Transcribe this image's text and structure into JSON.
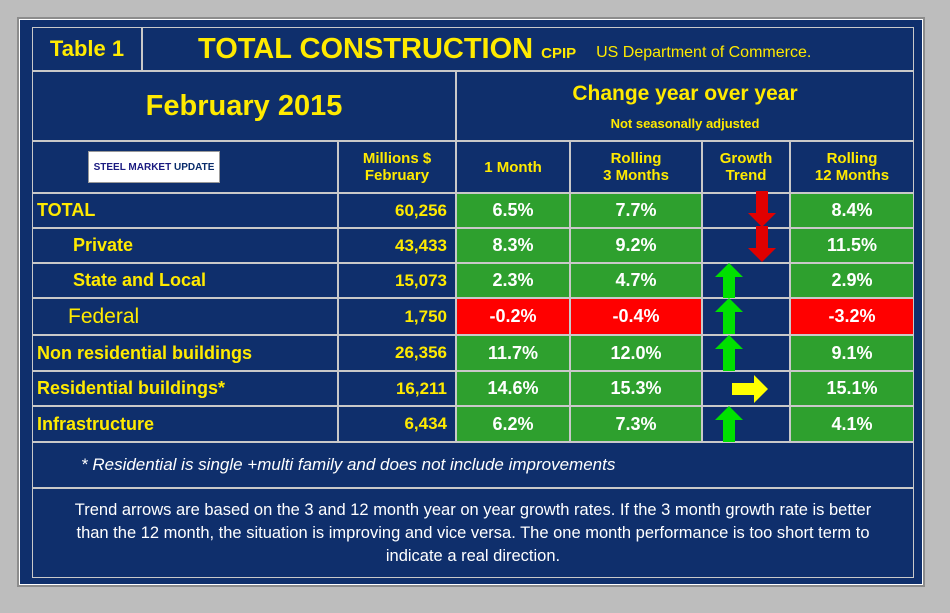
{
  "header": {
    "table_label": "Table 1",
    "title": "TOTAL CONSTRUCTION",
    "cpip": "CPIP",
    "source": "US Department of Commerce."
  },
  "period": "February 2015",
  "change_title": "Change year over year",
  "not_seasonal": "Not seasonally adjusted",
  "logo": {
    "strong": "STEEL MARKET",
    "light": "UPDATE"
  },
  "columns": {
    "millions_l1": "Millions $",
    "millions_l2": "February",
    "one_month": "1 Month",
    "rolling3_l1": "Rolling",
    "rolling3_l2": "3 Months",
    "growth_l1": "Growth",
    "growth_l2": "Trend",
    "rolling12_l1": "Rolling",
    "rolling12_l2": "12 Months"
  },
  "rows": [
    {
      "label": "TOTAL",
      "value": "60,256",
      "m1": "6.5%",
      "r3": "7.7%",
      "trend": "down",
      "r12": "8.4%"
    },
    {
      "label": "Private",
      "value": "43,433",
      "m1": "8.3%",
      "r3": "9.2%",
      "trend": "down",
      "r12": "11.5%"
    },
    {
      "label": "State and Local",
      "value": "15,073",
      "m1": "2.3%",
      "r3": "4.7%",
      "trend": "up",
      "r12": "2.9%"
    },
    {
      "label": "Federal",
      "value": "1,750",
      "m1": "-0.2%",
      "r3": "-0.4%",
      "trend": "up",
      "r12": "-3.2%"
    },
    {
      "label": "Non residential buildings",
      "value": "26,356",
      "m1": "11.7%",
      "r3": "12.0%",
      "trend": "up",
      "r12": "9.1%"
    },
    {
      "label": "Residential buildings*",
      "value": "16,211",
      "m1": "14.6%",
      "r3": "15.3%",
      "trend": "right",
      "r12": "15.1%"
    },
    {
      "label": "Infrastructure",
      "value": "6,434",
      "m1": "6.2%",
      "r3": "7.3%",
      "trend": "up",
      "r12": "4.1%"
    }
  ],
  "footnote": "* Residential is single +multi family and does not include improvements",
  "explanation": "Trend arrows are based on the 3 and 12 month year on year growth rates. If the 3 month growth rate is better than the 12 month, the situation is improving and vice versa. The one month performance is too short term to indicate a real direction.",
  "colors": {
    "positive": "#2ea02e",
    "negative": "#ff0000",
    "up_arrow": "#00e000",
    "down_arrow": "#e00000",
    "right_arrow": "#ffff00"
  }
}
